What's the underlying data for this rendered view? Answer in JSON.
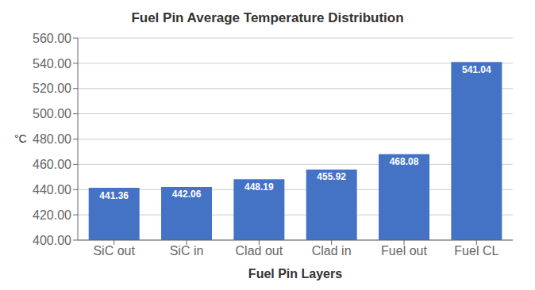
{
  "chart_data": {
    "type": "bar",
    "title": "Fuel Pin Average Temperature Distribution",
    "xlabel": "Fuel Pin Layers",
    "ylabel": "°C",
    "categories": [
      "SiC out",
      "SiC in",
      "Clad out",
      "Clad in",
      "Fuel out",
      "Fuel CL"
    ],
    "values": [
      441.36,
      442.06,
      448.19,
      455.92,
      468.08,
      541.04
    ],
    "color": "#4472C4",
    "ylim": [
      400,
      560
    ],
    "yticks": [
      {
        "value": 400,
        "label": "400.00"
      },
      {
        "value": 420,
        "label": "420.00"
      },
      {
        "value": 440,
        "label": "440.00"
      },
      {
        "value": 460,
        "label": "460.00"
      },
      {
        "value": 480,
        "label": "480.00"
      },
      {
        "value": 500,
        "label": "500.00"
      },
      {
        "value": 520,
        "label": "520.00"
      },
      {
        "value": 540,
        "label": "540.00"
      },
      {
        "value": 560,
        "label": "560.00"
      }
    ],
    "grid": true,
    "data_labels": true
  }
}
